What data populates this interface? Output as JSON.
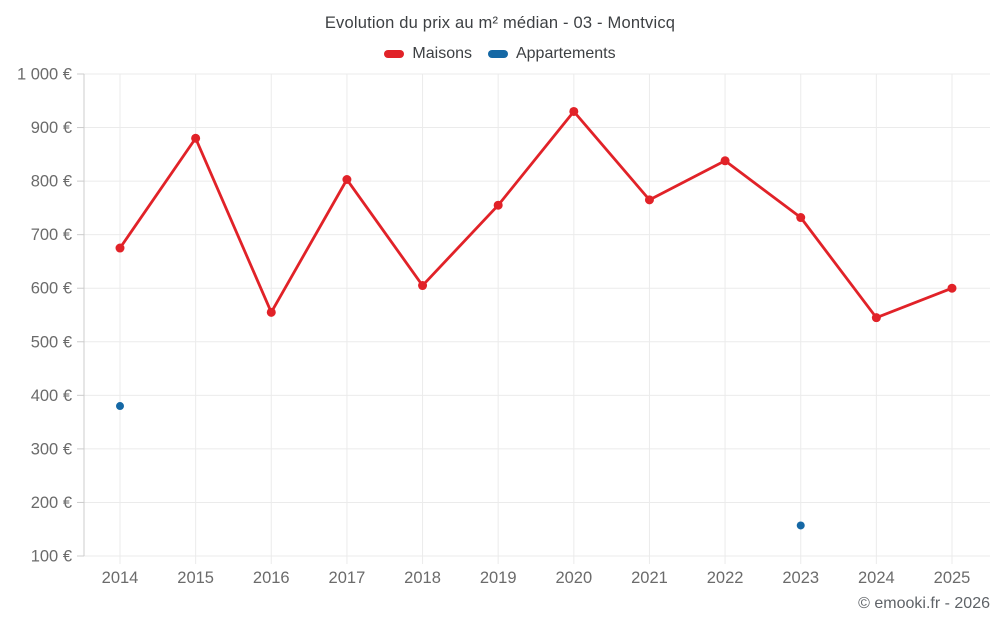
{
  "chart": {
    "title": "Evolution du prix au m² médian - 03 - Montvicq",
    "footer": "© emooki.fr - 2026"
  },
  "legend": {
    "items": [
      {
        "label": "Maisons",
        "color": "#e12228"
      },
      {
        "label": "Appartements",
        "color": "#1568a5"
      }
    ]
  },
  "axes": {
    "x_labels": [
      "2014",
      "2015",
      "2016",
      "2017",
      "2018",
      "2019",
      "2020",
      "2021",
      "2022",
      "2023",
      "2024",
      "2025"
    ],
    "y_labels": [
      "100 €",
      "200 €",
      "300 €",
      "400 €",
      "500 €",
      "600 €",
      "700 €",
      "800 €",
      "900 €",
      "1 000 €"
    ]
  },
  "colors": {
    "maisons": "#e12228",
    "appartements": "#1568a5",
    "grid": "#ebebeb",
    "axis_line": "#cccccc",
    "tick_text": "#6b6b6b",
    "title_text": "#3d4043"
  },
  "chart_data": {
    "type": "line",
    "title": "Evolution du prix au m² médian - 03 - Montvicq",
    "categories": [
      2014,
      2015,
      2016,
      2017,
      2018,
      2019,
      2020,
      2021,
      2022,
      2023,
      2024,
      2025
    ],
    "series": [
      {
        "name": "Maisons",
        "type": "line",
        "color": "#e12228",
        "values": [
          675,
          880,
          555,
          803,
          605,
          755,
          930,
          765,
          838,
          732,
          545,
          600
        ]
      },
      {
        "name": "Appartements",
        "type": "scatter",
        "color": "#1568a5",
        "values": [
          380,
          null,
          null,
          null,
          null,
          null,
          null,
          null,
          null,
          157,
          null,
          null
        ]
      }
    ],
    "xlabel": "",
    "ylabel": "",
    "ylim": [
      100,
      1000
    ],
    "ytick_step": 100,
    "ytick_suffix": " €",
    "grid": true,
    "legend_position": "top",
    "annotations": [
      "© emooki.fr - 2026"
    ]
  }
}
